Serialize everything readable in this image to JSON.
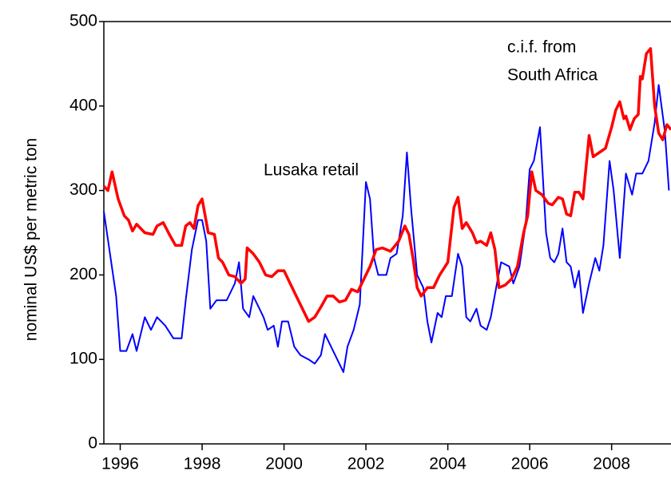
{
  "chart_data": {
    "type": "line",
    "y_label": "nominal US$ per metric ton",
    "annotations": [
      "Lusaka retail",
      "c.i.f. from",
      "South Africa"
    ],
    "xlim": [
      1995.6,
      2009.45
    ],
    "xticks": [
      1996,
      1998,
      2000,
      2002,
      2004,
      2006,
      2008
    ],
    "ylim": [
      0,
      500
    ],
    "yticks": [
      0,
      100,
      200,
      300,
      400,
      500
    ],
    "series": [
      {
        "name": "Lusaka retail",
        "color": "#0000ff",
        "x": [
          1995.6,
          1995.75,
          1995.9,
          1996.0,
          1996.15,
          1996.3,
          1996.4,
          1996.6,
          1996.75,
          1996.9,
          1997.1,
          1997.3,
          1997.5,
          1997.6,
          1997.75,
          1997.9,
          1998.0,
          1998.1,
          1998.2,
          1998.35,
          1998.6,
          1998.8,
          1998.9,
          1999.0,
          1999.15,
          1999.25,
          1999.4,
          1999.5,
          1999.6,
          1999.75,
          1999.85,
          1999.95,
          2000.1,
          2000.25,
          2000.4,
          2000.6,
          2000.75,
          2000.9,
          2001.0,
          2001.15,
          2001.3,
          2001.45,
          2001.55,
          2001.7,
          2001.85,
          2002.0,
          2002.1,
          2002.2,
          2002.3,
          2002.5,
          2002.6,
          2002.75,
          2002.9,
          2003.0,
          2003.1,
          2003.25,
          2003.4,
          2003.5,
          2003.6,
          2003.75,
          2003.85,
          2003.95,
          2004.1,
          2004.25,
          2004.35,
          2004.45,
          2004.55,
          2004.7,
          2004.8,
          2004.95,
          2005.05,
          2005.2,
          2005.3,
          2005.5,
          2005.6,
          2005.75,
          2005.9,
          2006.0,
          2006.1,
          2006.25,
          2006.4,
          2006.5,
          2006.6,
          2006.7,
          2006.8,
          2006.9,
          2007.0,
          2007.1,
          2007.2,
          2007.3,
          2007.45,
          2007.6,
          2007.7,
          2007.8,
          2007.95,
          2008.05,
          2008.2,
          2008.35,
          2008.5,
          2008.6,
          2008.75,
          2008.9,
          2009.05,
          2009.15,
          2009.3,
          2009.4
        ],
        "values": [
          275,
          225,
          175,
          110,
          110,
          130,
          110,
          150,
          135,
          150,
          140,
          125,
          125,
          170,
          230,
          265,
          265,
          240,
          160,
          170,
          170,
          190,
          215,
          160,
          150,
          175,
          160,
          150,
          135,
          140,
          115,
          145,
          145,
          115,
          105,
          100,
          95,
          105,
          130,
          115,
          100,
          85,
          115,
          135,
          165,
          310,
          290,
          220,
          200,
          200,
          220,
          225,
          270,
          345,
          280,
          200,
          185,
          145,
          120,
          155,
          150,
          175,
          175,
          225,
          210,
          150,
          145,
          160,
          140,
          135,
          150,
          190,
          215,
          210,
          190,
          210,
          260,
          325,
          335,
          375,
          250,
          220,
          215,
          225,
          255,
          215,
          210,
          185,
          205,
          155,
          190,
          220,
          205,
          235,
          335,
          300,
          220,
          320,
          295,
          320,
          320,
          335,
          380,
          425,
          370,
          300
        ]
      },
      {
        "name": "c.i.f. from South Africa",
        "color": "#ff0000",
        "x": [
          1995.6,
          1995.7,
          1995.8,
          1995.95,
          1996.1,
          1996.2,
          1996.3,
          1996.4,
          1996.6,
          1996.8,
          1996.9,
          1997.05,
          1997.2,
          1997.35,
          1997.5,
          1997.6,
          1997.7,
          1997.8,
          1997.9,
          1998.0,
          1998.15,
          1998.3,
          1998.4,
          1998.5,
          1998.65,
          1998.8,
          1998.95,
          1999.05,
          1999.1,
          1999.25,
          1999.4,
          1999.55,
          1999.7,
          1999.85,
          2000.0,
          2000.15,
          2000.3,
          2000.45,
          2000.6,
          2000.75,
          2000.9,
          2001.05,
          2001.2,
          2001.35,
          2001.5,
          2001.65,
          2001.8,
          2001.95,
          2002.1,
          2002.25,
          2002.4,
          2002.6,
          2002.8,
          2002.95,
          2003.05,
          2003.15,
          2003.25,
          2003.35,
          2003.5,
          2003.65,
          2003.8,
          2004.0,
          2004.15,
          2004.25,
          2004.35,
          2004.45,
          2004.6,
          2004.7,
          2004.8,
          2004.95,
          2005.05,
          2005.15,
          2005.25,
          2005.4,
          2005.55,
          2005.7,
          2005.85,
          2005.95,
          2006.05,
          2006.15,
          2006.3,
          2006.45,
          2006.55,
          2006.7,
          2006.8,
          2006.9,
          2007.0,
          2007.1,
          2007.2,
          2007.3,
          2007.45,
          2007.55,
          2007.7,
          2007.85,
          2008.0,
          2008.1,
          2008.2,
          2008.3,
          2008.35,
          2008.45,
          2008.55,
          2008.65,
          2008.7,
          2008.75,
          2008.85,
          2008.95,
          2009.05,
          2009.15,
          2009.25,
          2009.35,
          2009.45
        ],
        "values": [
          305,
          300,
          322,
          290,
          270,
          265,
          252,
          260,
          250,
          248,
          258,
          262,
          248,
          235,
          235,
          258,
          262,
          255,
          282,
          290,
          250,
          248,
          220,
          215,
          200,
          198,
          190,
          195,
          232,
          225,
          215,
          200,
          198,
          205,
          205,
          190,
          175,
          160,
          145,
          150,
          162,
          175,
          175,
          168,
          170,
          183,
          180,
          195,
          210,
          230,
          232,
          228,
          240,
          258,
          248,
          220,
          185,
          175,
          185,
          185,
          200,
          215,
          280,
          292,
          255,
          262,
          250,
          238,
          240,
          235,
          250,
          230,
          185,
          188,
          195,
          210,
          250,
          270,
          322,
          300,
          295,
          285,
          283,
          292,
          290,
          272,
          270,
          298,
          298,
          290,
          365,
          340,
          345,
          350,
          375,
          395,
          405,
          385,
          388,
          372,
          385,
          390,
          435,
          432,
          462,
          468,
          400,
          368,
          360,
          378,
          372
        ]
      }
    ]
  }
}
